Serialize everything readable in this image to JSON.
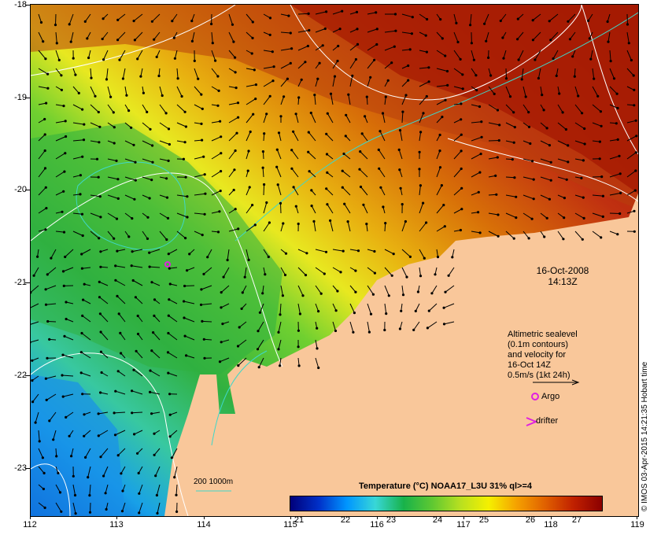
{
  "map": {
    "y_axis_labels": [
      "-18",
      "-19",
      "-20",
      "-21",
      "-22",
      "-23"
    ],
    "x_axis_labels": [
      "112",
      "113",
      "114",
      "115",
      "116",
      "117",
      "118",
      "119"
    ],
    "date": "16-Oct-2008",
    "time": "14:13Z",
    "altimetry_lines": [
      "Altimetric sealevel",
      "(0.1m contours)",
      "and velocity for",
      "16-Oct 14Z",
      "0.5m/s (1kt 24h)"
    ],
    "argo_label": "Argo",
    "drifter_label": "drifter",
    "depth_contours_label": "200  1000m",
    "colorbar_title": "Temperature (°C) NOAA17_L3U 31% ql>=4",
    "colorbar_ticks": [
      "21",
      "22",
      "23",
      "24",
      "25",
      "26",
      "27"
    ],
    "credit": "© IMOS 03-Apr-2015 14:21:35 Hobart time",
    "colors": {
      "land": "#f9c79a",
      "contour": "#ffffff",
      "isobath": "#3fd7c9",
      "argo_marker": "#e020e0",
      "arrow": "#000000",
      "sst_scale": [
        "#00007a",
        "#0030c8",
        "#0096ff",
        "#38d7d7",
        "#18b24a",
        "#5ec832",
        "#b8e020",
        "#f5f000",
        "#f5a000",
        "#e06000",
        "#c02000",
        "#8b0000"
      ]
    }
  }
}
